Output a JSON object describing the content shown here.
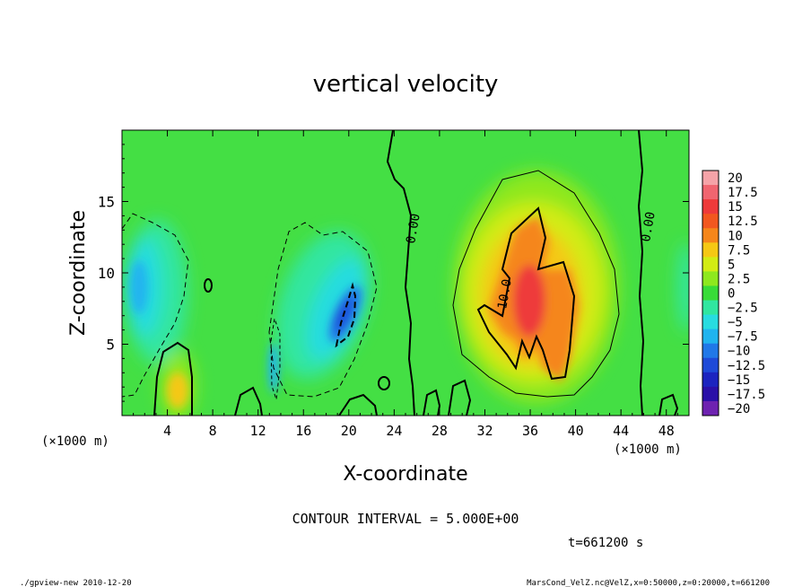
{
  "chart_data": {
    "type": "heatmap",
    "title": "vertical velocity",
    "xlabel": "X-coordinate",
    "ylabel": "Z-coordinate",
    "x_unit_label_left": "(×1000 m)",
    "x_unit_label_right": "(×1000 m)",
    "xlim": [
      0,
      50
    ],
    "ylim": [
      0,
      20
    ],
    "x_ticks": [
      4,
      8,
      12,
      16,
      20,
      24,
      28,
      32,
      36,
      40,
      44,
      48
    ],
    "y_ticks": [
      5,
      10,
      15
    ],
    "colorbar": {
      "levels": [
        20,
        17.5,
        15,
        12.5,
        10,
        7.5,
        5,
        2.5,
        0,
        -2.5,
        -5,
        -7.5,
        -10,
        -12.5,
        -15,
        -17.5,
        -20
      ],
      "labels": [
        "20",
        "17.5",
        "15",
        "12.5",
        "10",
        "7.5",
        "5",
        "2.5",
        "0",
        "−2.5",
        "−5",
        "−7.5",
        "−10",
        "−12.5",
        "−15",
        "−17.5",
        "−20"
      ],
      "colors": [
        "#f5a3a8",
        "#f06570",
        "#ee3a3a",
        "#f2571f",
        "#f5861a",
        "#f5c814",
        "#d2ec14",
        "#8ee81e",
        "#38dc38",
        "#30e6a0",
        "#28dce0",
        "#20b4ef",
        "#2078e8",
        "#1e4ad8",
        "#1c24c0",
        "#2a10a8",
        "#6e22b0"
      ]
    },
    "contour_labels": [
      {
        "text": "0.00",
        "x": 24.8,
        "z": 13.0
      },
      {
        "text": "0.00",
        "x": 45.3,
        "z": 13.5
      },
      {
        "text": "10.0",
        "x": 34.2,
        "z": 9.0
      }
    ],
    "contour_interval_text": "CONTOUR INTERVAL = 5.000E+00",
    "time_text": "t=661200 s",
    "regions": [
      {
        "kind": "updraft",
        "x_range": [
          30,
          44
        ],
        "z_range": [
          0.5,
          17
        ],
        "peak_value": 15,
        "peak_at": [
          35.5,
          8
        ]
      },
      {
        "kind": "downdraft",
        "x_range": [
          13,
          22
        ],
        "z_range": [
          2,
          13
        ],
        "min_value": -12.5,
        "min_at": [
          20,
          7
        ]
      },
      {
        "kind": "downdraft",
        "x_range": [
          0,
          6
        ],
        "z_range": [
          1,
          14
        ],
        "min_value": -5
      },
      {
        "kind": "updraft",
        "x_range": [
          3.5,
          6
        ],
        "z_range": [
          0,
          5
        ],
        "peak_value": 7.5,
        "peak_at": [
          5,
          2
        ]
      }
    ]
  },
  "footer": {
    "left": "./gpview-new  2010-12-20",
    "right": "MarsCond_VelZ.nc@VelZ,x=0:50000,z=0:20000,t=661200"
  }
}
